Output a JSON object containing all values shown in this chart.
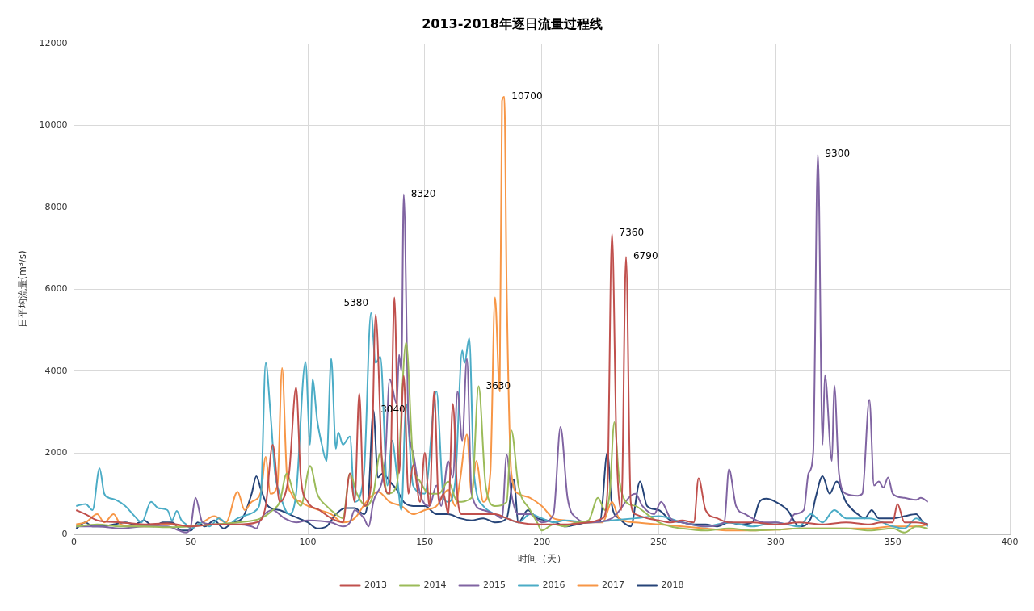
{
  "chart_data": {
    "type": "line",
    "title": "2013-2018年逐日流量过程线",
    "xlabel": "时间（天）",
    "ylabel": "日平均流量(m³/s)",
    "xlim": [
      0,
      400
    ],
    "xticks": [
      0,
      50,
      100,
      150,
      200,
      250,
      300,
      350,
      400
    ],
    "ylim": [
      0,
      12000
    ],
    "yticks": [
      0,
      2000,
      4000,
      6000,
      8000,
      10000,
      12000
    ],
    "grid": true,
    "legend": "bottom",
    "marker": "none",
    "line_style": "solid",
    "annotations": [
      {
        "text": "5380",
        "x": 129,
        "y": 5380
      },
      {
        "text": "8320",
        "x": 141,
        "y": 8320
      },
      {
        "text": "10700",
        "x": 184,
        "y": 10700
      },
      {
        "text": "7360",
        "x": 230,
        "y": 7360
      },
      {
        "text": "6790",
        "x": 236,
        "y": 6790
      },
      {
        "text": "9300",
        "x": 318,
        "y": 9300
      },
      {
        "text": "3630",
        "x": 173,
        "y": 3630
      },
      {
        "text": "3040",
        "x": 128,
        "y": 3040
      }
    ],
    "series": [
      {
        "name": "2013",
        "color": "#c0504d",
        "x": [
          1,
          5,
          10,
          20,
          30,
          40,
          50,
          60,
          70,
          78,
          82,
          85,
          88,
          92,
          95,
          97,
          100,
          105,
          110,
          115,
          118,
          120,
          122,
          124,
          127,
          129,
          132,
          135,
          137,
          139,
          141,
          143,
          145,
          148,
          150,
          152,
          154,
          156,
          158,
          160,
          162,
          164,
          166,
          170,
          175,
          180,
          185,
          190,
          200,
          210,
          220,
          226,
          228,
          230,
          232,
          234,
          236,
          238,
          240,
          245,
          250,
          255,
          260,
          265,
          267,
          270,
          275,
          280,
          290,
          300,
          310,
          320,
          330,
          340,
          345,
          350,
          352,
          355,
          360,
          365
        ],
        "values": [
          600,
          500,
          350,
          300,
          250,
          280,
          200,
          250,
          250,
          300,
          700,
          2200,
          800,
          1500,
          3600,
          1400,
          800,
          600,
          400,
          300,
          1500,
          800,
          3450,
          700,
          1200,
          5380,
          1500,
          1000,
          5800,
          1500,
          3880,
          1000,
          1700,
          800,
          2000,
          700,
          3500,
          800,
          1000,
          500,
          3200,
          900,
          500,
          500,
          500,
          500,
          400,
          300,
          250,
          250,
          300,
          400,
          1000,
          7360,
          2000,
          600,
          6790,
          800,
          500,
          400,
          350,
          300,
          350,
          300,
          1380,
          600,
          400,
          300,
          300,
          250,
          300,
          250,
          300,
          250,
          300,
          300,
          750,
          300,
          300,
          250
        ]
      },
      {
        "name": "2014",
        "color": "#9bbb59",
        "x": [
          1,
          10,
          20,
          30,
          40,
          50,
          60,
          70,
          80,
          85,
          88,
          91,
          94,
          97,
          101,
          104,
          108,
          112,
          115,
          118,
          121,
          125,
          128,
          131,
          134,
          138,
          142,
          145,
          148,
          152,
          156,
          160,
          164,
          170,
          173,
          176,
          180,
          185,
          187,
          190,
          195,
          198,
          200,
          205,
          210,
          215,
          220,
          224,
          227,
          229,
          231,
          233,
          236,
          240,
          245,
          250,
          255,
          260,
          270,
          280,
          290,
          300,
          310,
          320,
          330,
          340,
          350,
          355,
          360,
          365
        ],
        "values": [
          200,
          250,
          200,
          200,
          180,
          200,
          250,
          300,
          400,
          600,
          800,
          1500,
          1000,
          700,
          1680,
          1000,
          700,
          500,
          400,
          1500,
          1000,
          700,
          1000,
          2000,
          1000,
          1200,
          4700,
          1800,
          1300,
          1000,
          1000,
          1300,
          800,
          900,
          3630,
          1200,
          700,
          800,
          2550,
          1200,
          600,
          300,
          100,
          250,
          200,
          300,
          350,
          900,
          600,
          1000,
          2750,
          1400,
          800,
          700,
          500,
          300,
          200,
          150,
          100,
          150,
          100,
          120,
          150,
          150,
          150,
          100,
          150,
          50,
          200,
          150
        ]
      },
      {
        "name": "2015",
        "color": "#8064a2",
        "x": [
          1,
          10,
          20,
          30,
          40,
          45,
          48,
          50,
          52,
          55,
          60,
          70,
          76,
          78,
          80,
          85,
          90,
          95,
          100,
          110,
          115,
          118,
          120,
          124,
          126,
          128,
          133,
          135,
          138,
          139,
          140,
          141,
          143,
          145,
          148,
          152,
          155,
          157,
          160,
          162,
          164,
          166,
          168,
          170,
          175,
          180,
          183,
          185,
          187,
          190,
          195,
          200,
          205,
          208,
          211,
          215,
          220,
          230,
          240,
          243,
          248,
          251,
          255,
          260,
          270,
          278,
          280,
          283,
          287,
          290,
          295,
          300,
          305,
          308,
          312,
          314,
          316,
          318,
          320,
          321,
          324,
          325,
          327,
          330,
          335,
          337,
          340,
          342,
          344,
          346,
          348,
          350,
          355,
          360,
          362,
          365
        ],
        "values": [
          200,
          200,
          150,
          200,
          200,
          100,
          50,
          200,
          900,
          300,
          250,
          250,
          200,
          150,
          400,
          600,
          400,
          300,
          350,
          300,
          200,
          300,
          600,
          400,
          200,
          800,
          1800,
          3800,
          3200,
          4400,
          4000,
          8320,
          2800,
          2000,
          1000,
          700,
          1200,
          700,
          1800,
          1400,
          3500,
          2300,
          4300,
          1000,
          600,
          500,
          400,
          1950,
          1000,
          500,
          500,
          300,
          500,
          2630,
          900,
          400,
          300,
          400,
          1000,
          700,
          500,
          800,
          400,
          300,
          200,
          300,
          1600,
          700,
          500,
          400,
          300,
          300,
          250,
          500,
          600,
          1500,
          2000,
          9300,
          2200,
          3900,
          1800,
          3650,
          1500,
          1000,
          950,
          1000,
          3300,
          1200,
          1300,
          1150,
          1400,
          1000,
          900,
          850,
          900,
          800
        ]
      },
      {
        "name": "2016",
        "color": "#4bacc6",
        "x": [
          1,
          5,
          8,
          11,
          13,
          15,
          18,
          22,
          26,
          29,
          33,
          36,
          40,
          42,
          44,
          46,
          48,
          50,
          55,
          58,
          62,
          66,
          70,
          75,
          78,
          80,
          82,
          84,
          86,
          88,
          92,
          95,
          99,
          101,
          102,
          104,
          106,
          108,
          110,
          112,
          113,
          115,
          118,
          120,
          124,
          127,
          129,
          131,
          134,
          136,
          138,
          140,
          142,
          145,
          150,
          155,
          158,
          160,
          163,
          166,
          167,
          169,
          171,
          175,
          180,
          185,
          190,
          195,
          200,
          205,
          210,
          220,
          230,
          240,
          250,
          260,
          270,
          280,
          290,
          300,
          310,
          315,
          320,
          325,
          330,
          340,
          350,
          355,
          360,
          365
        ],
        "values": [
          700,
          750,
          600,
          1620,
          1000,
          900,
          850,
          700,
          450,
          300,
          800,
          650,
          600,
          350,
          580,
          350,
          250,
          150,
          300,
          200,
          400,
          250,
          400,
          500,
          600,
          1000,
          4200,
          3000,
          1500,
          1000,
          500,
          1000,
          4220,
          2200,
          3800,
          2800,
          2200,
          1800,
          4300,
          2100,
          2500,
          2200,
          2400,
          800,
          1500,
          5420,
          4200,
          4350,
          1200,
          2300,
          1500,
          600,
          3200,
          1200,
          1000,
          3500,
          900,
          800,
          1300,
          4500,
          4200,
          4800,
          1500,
          700,
          500,
          400,
          300,
          500,
          400,
          300,
          350,
          300,
          350,
          400,
          450,
          300,
          200,
          300,
          200,
          300,
          200,
          500,
          300,
          600,
          400,
          400,
          200,
          150,
          400,
          200
        ]
      },
      {
        "name": "2017",
        "color": "#f79646",
        "x": [
          1,
          5,
          10,
          13,
          17,
          20,
          25,
          30,
          40,
          50,
          55,
          60,
          65,
          70,
          73,
          76,
          80,
          82,
          84,
          87,
          89,
          91,
          93,
          97,
          100,
          105,
          110,
          115,
          120,
          125,
          130,
          135,
          140,
          145,
          150,
          155,
          160,
          163,
          165,
          168,
          170,
          172,
          175,
          178,
          180,
          182,
          183,
          184,
          185,
          187,
          190,
          195,
          200,
          205,
          210,
          215,
          220,
          226,
          230,
          233,
          240,
          250,
          260,
          270,
          280,
          290,
          300,
          310,
          320,
          330,
          340,
          350,
          360,
          365
        ],
        "values": [
          250,
          300,
          500,
          300,
          500,
          250,
          200,
          200,
          250,
          200,
          300,
          450,
          300,
          1050,
          600,
          800,
          1050,
          1900,
          1000,
          1200,
          4070,
          1500,
          1000,
          800,
          700,
          600,
          500,
          300,
          400,
          800,
          1050,
          800,
          700,
          500,
          600,
          700,
          1100,
          700,
          1300,
          2450,
          1000,
          1800,
          800,
          1500,
          5800,
          3500,
          10600,
          10700,
          6000,
          1500,
          1000,
          900,
          700,
          400,
          350,
          300,
          300,
          300,
          800,
          400,
          300,
          250,
          200,
          150,
          100,
          100,
          120,
          150,
          150,
          150,
          150,
          200,
          200,
          250
        ]
      },
      {
        "name": "2018",
        "color": "#264478",
        "x": [
          1,
          5,
          8,
          12,
          17,
          22,
          26,
          30,
          34,
          38,
          42,
          46,
          50,
          53,
          56,
          60,
          64,
          68,
          72,
          76,
          78,
          80,
          83,
          88,
          92,
          96,
          100,
          104,
          108,
          112,
          116,
          120,
          124,
          126,
          128,
          130,
          132,
          135,
          138,
          141,
          145,
          150,
          155,
          160,
          165,
          170,
          175,
          180,
          185,
          188,
          190,
          194,
          198,
          202,
          206,
          210,
          215,
          220,
          225,
          228,
          230,
          233,
          238,
          242,
          245,
          250,
          255,
          260,
          265,
          270,
          275,
          280,
          285,
          290,
          293,
          296,
          300,
          305,
          310,
          315,
          317,
          320,
          323,
          326,
          330,
          335,
          338,
          341,
          344,
          350,
          355,
          360,
          363,
          365
        ],
        "values": [
          150,
          300,
          200,
          200,
          250,
          300,
          250,
          350,
          200,
          300,
          300,
          100,
          100,
          300,
          200,
          350,
          150,
          300,
          400,
          1000,
          1430,
          1100,
          700,
          600,
          500,
          400,
          300,
          150,
          200,
          500,
          650,
          650,
          500,
          1000,
          3040,
          1400,
          1500,
          1300,
          1100,
          800,
          700,
          700,
          500,
          500,
          400,
          350,
          400,
          300,
          400,
          1350,
          300,
          600,
          400,
          350,
          300,
          200,
          250,
          300,
          350,
          2000,
          700,
          400,
          200,
          1300,
          700,
          600,
          350,
          300,
          250,
          250,
          200,
          300,
          250,
          300,
          800,
          880,
          800,
          600,
          200,
          400,
          900,
          1430,
          1000,
          1300,
          800,
          500,
          400,
          600,
          400,
          400,
          450,
          500,
          300,
          250
        ]
      }
    ]
  }
}
